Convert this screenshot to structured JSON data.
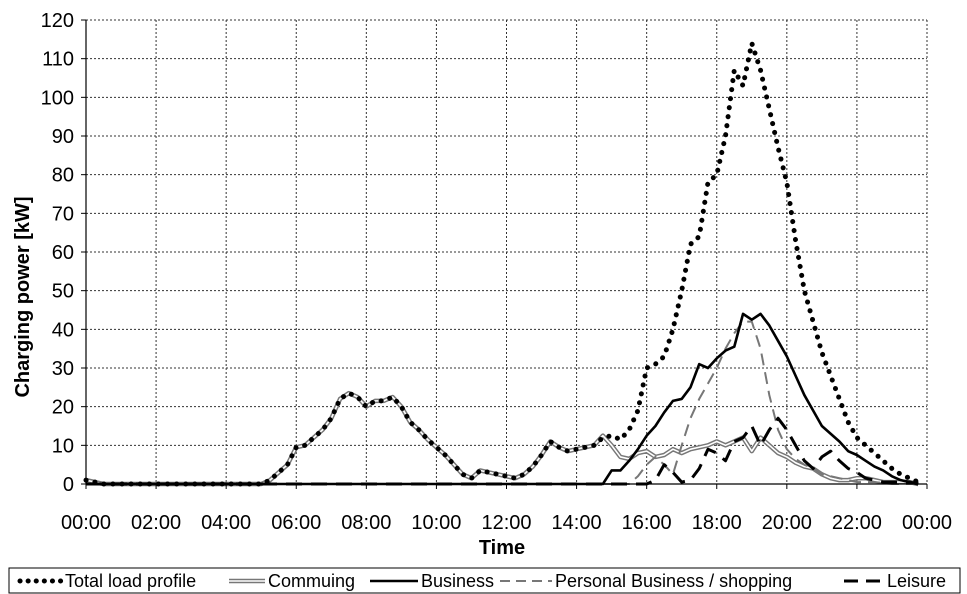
{
  "chart_data": {
    "type": "line",
    "xlabel": "Time",
    "ylabel": "Charging power [kW]",
    "x_tick_labels": [
      "00:00",
      "02:00",
      "04:00",
      "06:00",
      "08:00",
      "10:00",
      "12:00",
      "14:00",
      "16:00",
      "18:00",
      "20:00",
      "22:00",
      "00:00"
    ],
    "y_tick_labels": [
      "0",
      "10",
      "20",
      "30",
      "40",
      "50",
      "60",
      "70",
      "80",
      "90",
      "100",
      "110",
      "120"
    ],
    "xlim": [
      0,
      24
    ],
    "ylim": [
      0,
      120
    ],
    "grid": true,
    "legend_position": "bottom",
    "series": [
      {
        "name": "Total load profile",
        "style": "dotted",
        "color": "#000000",
        "points": [
          [
            0,
            1
          ],
          [
            0.5,
            0
          ],
          [
            1,
            0
          ],
          [
            2,
            0
          ],
          [
            3,
            0
          ],
          [
            4,
            0
          ],
          [
            5,
            0
          ],
          [
            5.25,
            1
          ],
          [
            5.5,
            3
          ],
          [
            5.75,
            5
          ],
          [
            6,
            9.5
          ],
          [
            6.25,
            10
          ],
          [
            6.5,
            12
          ],
          [
            6.75,
            14
          ],
          [
            7,
            17
          ],
          [
            7.25,
            22
          ],
          [
            7.5,
            23.5
          ],
          [
            7.75,
            22.5
          ],
          [
            8,
            20
          ],
          [
            8.25,
            21.5
          ],
          [
            8.5,
            21.5
          ],
          [
            8.75,
            22.5
          ],
          [
            9,
            20
          ],
          [
            9.25,
            16
          ],
          [
            9.5,
            14
          ],
          [
            9.75,
            11.5
          ],
          [
            10,
            9.5
          ],
          [
            10.25,
            7.5
          ],
          [
            10.5,
            5
          ],
          [
            10.75,
            2.5
          ],
          [
            11,
            1.5
          ],
          [
            11.25,
            3.5
          ],
          [
            11.5,
            3
          ],
          [
            11.75,
            2.5
          ],
          [
            12,
            2
          ],
          [
            12.25,
            1.5
          ],
          [
            12.5,
            2.5
          ],
          [
            12.75,
            4.5
          ],
          [
            13,
            7.5
          ],
          [
            13.25,
            11
          ],
          [
            13.5,
            9.5
          ],
          [
            13.75,
            8.5
          ],
          [
            14,
            9
          ],
          [
            14.25,
            9.5
          ],
          [
            14.5,
            10
          ],
          [
            14.75,
            12
          ],
          [
            15,
            12.5
          ],
          [
            15.25,
            11.5
          ],
          [
            15.5,
            14
          ],
          [
            15.75,
            19
          ],
          [
            16,
            30
          ],
          [
            16.25,
            31
          ],
          [
            16.5,
            33
          ],
          [
            16.75,
            40
          ],
          [
            17,
            50
          ],
          [
            17.25,
            62
          ],
          [
            17.5,
            64
          ],
          [
            17.75,
            78
          ],
          [
            18,
            80
          ],
          [
            18.25,
            90
          ],
          [
            18.5,
            107
          ],
          [
            18.75,
            103
          ],
          [
            19,
            114
          ],
          [
            19.25,
            107
          ],
          [
            19.5,
            97
          ],
          [
            19.75,
            87
          ],
          [
            20,
            78
          ],
          [
            20.25,
            63
          ],
          [
            20.5,
            50
          ],
          [
            20.75,
            42
          ],
          [
            21,
            34
          ],
          [
            21.25,
            28
          ],
          [
            21.5,
            22
          ],
          [
            21.75,
            16
          ],
          [
            22,
            12
          ],
          [
            22.25,
            10
          ],
          [
            22.5,
            8
          ],
          [
            22.75,
            6
          ],
          [
            23,
            4
          ],
          [
            23.25,
            2.5
          ],
          [
            23.5,
            1.5
          ],
          [
            23.75,
            0.5
          ]
        ]
      },
      {
        "name": "Commuing",
        "style": "double",
        "color": "#777777",
        "points": [
          [
            0,
            1
          ],
          [
            0.5,
            0
          ],
          [
            1,
            0
          ],
          [
            2,
            0
          ],
          [
            3,
            0
          ],
          [
            4,
            0
          ],
          [
            5,
            0
          ],
          [
            5.25,
            1
          ],
          [
            5.5,
            3
          ],
          [
            5.75,
            5
          ],
          [
            6,
            9.5
          ],
          [
            6.25,
            10
          ],
          [
            6.5,
            12
          ],
          [
            6.75,
            14
          ],
          [
            7,
            17
          ],
          [
            7.25,
            22
          ],
          [
            7.5,
            23.5
          ],
          [
            7.75,
            22.5
          ],
          [
            8,
            20
          ],
          [
            8.25,
            21.5
          ],
          [
            8.5,
            21.5
          ],
          [
            8.75,
            22.5
          ],
          [
            9,
            20
          ],
          [
            9.25,
            16
          ],
          [
            9.5,
            14
          ],
          [
            9.75,
            11.5
          ],
          [
            10,
            9.5
          ],
          [
            10.25,
            7.5
          ],
          [
            10.5,
            5
          ],
          [
            10.75,
            2.5
          ],
          [
            11,
            1.5
          ],
          [
            11.25,
            3.5
          ],
          [
            11.5,
            3
          ],
          [
            11.75,
            2.5
          ],
          [
            12,
            2
          ],
          [
            12.25,
            1.5
          ],
          [
            12.5,
            2.5
          ],
          [
            12.75,
            4.5
          ],
          [
            13,
            7.5
          ],
          [
            13.25,
            11
          ],
          [
            13.5,
            9.5
          ],
          [
            13.75,
            8.5
          ],
          [
            14,
            9
          ],
          [
            14.25,
            9.5
          ],
          [
            14.5,
            10
          ],
          [
            14.75,
            12.5
          ],
          [
            15,
            10
          ],
          [
            15.25,
            7
          ],
          [
            15.5,
            6.5
          ],
          [
            15.75,
            8
          ],
          [
            16,
            8.5
          ],
          [
            16.25,
            7
          ],
          [
            16.5,
            7.5
          ],
          [
            16.75,
            9
          ],
          [
            17,
            8
          ],
          [
            17.25,
            9
          ],
          [
            17.5,
            9.5
          ],
          [
            17.75,
            10
          ],
          [
            18,
            11
          ],
          [
            18.25,
            10
          ],
          [
            18.5,
            11
          ],
          [
            18.75,
            12
          ],
          [
            19,
            8.5
          ],
          [
            19.25,
            12
          ],
          [
            19.5,
            10
          ],
          [
            19.75,
            8
          ],
          [
            20,
            7
          ],
          [
            20.25,
            5.5
          ],
          [
            20.5,
            4.5
          ],
          [
            20.75,
            4
          ],
          [
            21,
            2.5
          ],
          [
            21.25,
            1.5
          ],
          [
            21.5,
            1
          ],
          [
            21.75,
            1
          ],
          [
            22,
            1.5
          ],
          [
            22.25,
            1.5
          ],
          [
            22.5,
            1
          ],
          [
            22.75,
            0.5
          ],
          [
            23,
            0.5
          ],
          [
            23.5,
            0.5
          ],
          [
            23.75,
            0
          ]
        ]
      },
      {
        "name": "Business",
        "style": "solid",
        "color": "#000000",
        "points": [
          [
            0,
            0
          ],
          [
            5,
            0
          ],
          [
            10,
            0
          ],
          [
            14.75,
            0
          ],
          [
            15,
            3.5
          ],
          [
            15.25,
            3.5
          ],
          [
            15.5,
            6
          ],
          [
            15.75,
            9
          ],
          [
            16,
            12.5
          ],
          [
            16.25,
            15
          ],
          [
            16.5,
            18.5
          ],
          [
            16.75,
            21.5
          ],
          [
            17,
            22
          ],
          [
            17.25,
            25
          ],
          [
            17.5,
            31
          ],
          [
            17.75,
            30
          ],
          [
            18,
            32.5
          ],
          [
            18.25,
            34.5
          ],
          [
            18.5,
            35.5
          ],
          [
            18.75,
            44
          ],
          [
            19,
            42.5
          ],
          [
            19.25,
            44
          ],
          [
            19.5,
            41
          ],
          [
            19.75,
            37
          ],
          [
            20,
            33
          ],
          [
            20.25,
            28
          ],
          [
            20.5,
            23
          ],
          [
            20.75,
            19
          ],
          [
            21,
            15
          ],
          [
            21.25,
            13
          ],
          [
            21.5,
            11
          ],
          [
            21.75,
            8.5
          ],
          [
            22,
            7.5
          ],
          [
            22.25,
            6
          ],
          [
            22.5,
            4.5
          ],
          [
            22.75,
            3.5
          ],
          [
            23,
            2
          ],
          [
            23.25,
            1
          ],
          [
            23.5,
            0.5
          ],
          [
            23.75,
            0
          ]
        ]
      },
      {
        "name": "Personal Business / shopping",
        "style": "dashed",
        "color": "#777777",
        "points": [
          [
            0,
            0
          ],
          [
            15.5,
            0
          ],
          [
            15.75,
            2
          ],
          [
            16,
            5
          ],
          [
            16.25,
            7
          ],
          [
            16.5,
            5
          ],
          [
            16.75,
            2.5
          ],
          [
            17,
            10
          ],
          [
            17.25,
            17
          ],
          [
            17.5,
            22
          ],
          [
            17.75,
            26
          ],
          [
            18,
            30
          ],
          [
            18.25,
            35
          ],
          [
            18.5,
            39
          ],
          [
            18.75,
            42
          ],
          [
            19,
            42
          ],
          [
            19.25,
            35
          ],
          [
            19.5,
            23
          ],
          [
            19.75,
            14
          ],
          [
            20,
            9
          ],
          [
            20.25,
            6.5
          ],
          [
            20.5,
            5
          ],
          [
            20.75,
            4
          ],
          [
            21,
            2.5
          ],
          [
            21.25,
            2
          ],
          [
            21.5,
            1.5
          ],
          [
            21.75,
            1
          ],
          [
            22,
            0.5
          ],
          [
            22.5,
            0.5
          ],
          [
            23,
            0
          ],
          [
            23.75,
            0
          ]
        ]
      },
      {
        "name": "Leisure",
        "style": "longdash",
        "color": "#000000",
        "points": [
          [
            0,
            0
          ],
          [
            16,
            0
          ],
          [
            16.25,
            1
          ],
          [
            16.5,
            5
          ],
          [
            16.75,
            3
          ],
          [
            17,
            0.5
          ],
          [
            17.25,
            1
          ],
          [
            17.5,
            4
          ],
          [
            17.75,
            9
          ],
          [
            18,
            8
          ],
          [
            18.25,
            6
          ],
          [
            18.5,
            11
          ],
          [
            18.75,
            12
          ],
          [
            19,
            15
          ],
          [
            19.25,
            10
          ],
          [
            19.5,
            14
          ],
          [
            19.75,
            17
          ],
          [
            20,
            14
          ],
          [
            20.25,
            10
          ],
          [
            20.5,
            6
          ],
          [
            20.75,
            4
          ],
          [
            21,
            7
          ],
          [
            21.25,
            8.5
          ],
          [
            21.5,
            6
          ],
          [
            21.75,
            4
          ],
          [
            22,
            3
          ],
          [
            22.25,
            1.5
          ],
          [
            22.5,
            1
          ],
          [
            22.75,
            0.5
          ],
          [
            23,
            0.5
          ],
          [
            23.5,
            0.5
          ],
          [
            23.75,
            0
          ]
        ]
      }
    ]
  }
}
